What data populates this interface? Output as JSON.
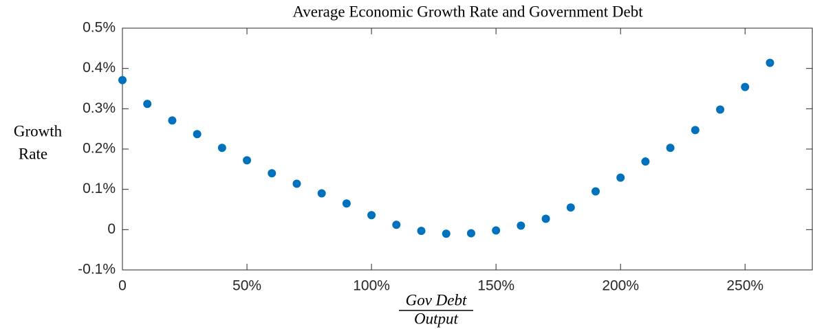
{
  "chart_data": {
    "type": "scatter",
    "title": "Average Economic Growth Rate and Government Debt",
    "x_label": {
      "numerator": "Gov Debt",
      "denominator": "Output"
    },
    "y_label": [
      "Growth",
      "Rate"
    ],
    "x": [
      0,
      10,
      20,
      30,
      40,
      50,
      60,
      70,
      80,
      90,
      100,
      110,
      120,
      130,
      140,
      150,
      160,
      170,
      180,
      190,
      200,
      210,
      220,
      230,
      240,
      250,
      260
    ],
    "values": [
      0.371,
      0.312,
      0.271,
      0.237,
      0.203,
      0.172,
      0.14,
      0.114,
      0.09,
      0.065,
      0.036,
      0.012,
      -0.003,
      -0.01,
      -0.009,
      -0.002,
      0.01,
      0.027,
      0.055,
      0.095,
      0.129,
      0.169,
      0.203,
      0.247,
      0.298,
      0.354,
      0.414
    ],
    "color": "#0072bd",
    "xlim": [
      0,
      277
    ],
    "ylim": [
      -0.1,
      0.5
    ],
    "xticks": [
      0,
      {
        "value": 50,
        "label": "50%"
      },
      {
        "value": 100,
        "label": "100%"
      },
      {
        "value": 150,
        "label": "150%"
      },
      {
        "value": 200,
        "label": "200%"
      },
      {
        "value": 250,
        "label": "250%"
      }
    ],
    "yticks": [
      {
        "value": -0.1,
        "label": "-0.1%"
      },
      0,
      {
        "value": 0.1,
        "label": "0.1%"
      },
      {
        "value": 0.2,
        "label": "0.2%"
      },
      {
        "value": 0.3,
        "label": "0.3%"
      },
      {
        "value": 0.4,
        "label": "0.4%"
      },
      {
        "value": 0.5,
        "label": "0.5%"
      }
    ],
    "grid": false
  }
}
